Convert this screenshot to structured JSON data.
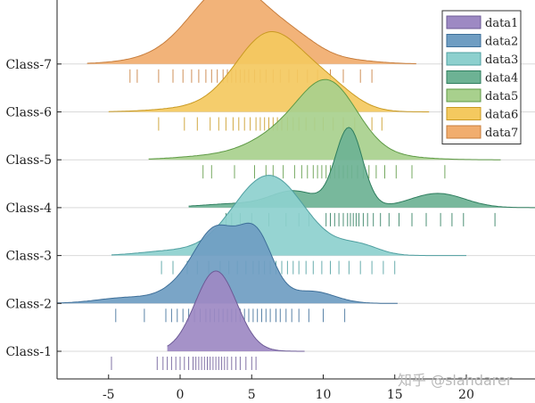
{
  "chart_data": {
    "type": "ridgeline",
    "title": "",
    "xlabel": "",
    "ylabel": "",
    "xlim": [
      -8.6,
      24.8
    ],
    "x_ticks": [
      -5,
      0,
      5,
      10,
      15,
      20
    ],
    "grid": "horizontal baselines only",
    "legend_position": "top-right",
    "categories": [
      "Class-1",
      "Class-2",
      "Class-3",
      "Class-4",
      "Class-5",
      "Class-6",
      "Class-7"
    ],
    "series": [
      {
        "name": "data1",
        "category": "Class-1",
        "color": "#9d89c3",
        "edge": "#6c5a96",
        "range": [
          -0.9,
          8.7
        ],
        "peaks": [
          [
            2.5,
            1.45,
            1.0
          ]
        ],
        "rug": [
          -4.8,
          -1.6,
          -1.2,
          -0.9,
          -0.6,
          -0.3,
          0.0,
          0.3,
          0.6,
          0.9,
          1.1,
          1.3,
          1.5,
          1.7,
          1.9,
          2.1,
          2.3,
          2.5,
          2.7,
          2.9,
          3.1,
          3.3,
          3.6,
          3.9,
          4.2,
          4.6,
          5.0,
          5.3
        ]
      },
      {
        "name": "data2",
        "category": "Class-2",
        "color": "#6f9dc2",
        "edge": "#3e6f99",
        "range": [
          -8.6,
          15.2
        ],
        "peaks": [
          [
            5.3,
            1.2,
            0.55
          ],
          [
            2.6,
            1.4,
            0.55
          ],
          [
            0.5,
            1.5,
            0.15
          ],
          [
            -3.5,
            2.2,
            0.05
          ],
          [
            9.2,
            1.6,
            0.1
          ]
        ],
        "rug": [
          -4.5,
          -2.5,
          -1.0,
          -0.6,
          -0.2,
          0.2,
          0.6,
          1.0,
          1.4,
          1.8,
          2.1,
          2.4,
          2.7,
          3.0,
          3.3,
          3.6,
          3.9,
          4.2,
          4.5,
          4.8,
          5.1,
          5.4,
          5.7,
          6.0,
          6.3,
          6.7,
          7.0,
          7.4,
          7.8,
          8.3,
          9.0,
          10.0,
          11.5
        ]
      },
      {
        "name": "data3",
        "category": "Class-3",
        "color": "#8dd0ce",
        "edge": "#4f9fa0",
        "range": [
          -4.8,
          20.0
        ],
        "peaks": [
          [
            6.2,
            2.5,
            1.0
          ],
          [
            12.5,
            1.4,
            0.12
          ],
          [
            -1.0,
            2.0,
            0.05
          ]
        ],
        "rug": [
          -1.3,
          -0.5,
          0.5,
          1.2,
          2.0,
          2.8,
          3.4,
          4.0,
          4.6,
          5.1,
          5.5,
          5.9,
          6.3,
          6.7,
          7.1,
          7.5,
          7.9,
          8.3,
          8.8,
          9.3,
          9.9,
          10.5,
          11.1,
          11.8,
          12.6,
          13.4,
          14.2,
          15.0
        ]
      },
      {
        "name": "data4",
        "category": "Class-4",
        "color": "#6db294",
        "edge": "#2e7d5e",
        "range": [
          0.6,
          24.8
        ],
        "peaks": [
          [
            11.8,
            0.95,
            1.0
          ],
          [
            8.0,
            1.6,
            0.2
          ],
          [
            18.0,
            1.9,
            0.18
          ],
          [
            4.0,
            2.5,
            0.05
          ]
        ],
        "rug": [
          3.2,
          3.6,
          4.2,
          5.0,
          6.2,
          7.4,
          8.3,
          9.0,
          10.2,
          10.5,
          10.8,
          11.1,
          11.4,
          11.7,
          11.9,
          12.1,
          12.3,
          12.5,
          12.8,
          13.1,
          13.5,
          14.0,
          14.6,
          15.3,
          16.2,
          17.2,
          18.2,
          19.0,
          19.8,
          22.0
        ]
      },
      {
        "name": "data5",
        "category": "Class-5",
        "color": "#a8d08d",
        "edge": "#5e9a45",
        "range": [
          -2.2,
          22.4
        ],
        "peaks": [
          [
            10.5,
            2.0,
            0.82
          ],
          [
            7.5,
            2.5,
            0.33
          ],
          [
            2.0,
            2.5,
            0.04
          ],
          [
            14.5,
            2.5,
            0.04
          ]
        ],
        "rug": [
          1.6,
          2.2,
          3.8,
          5.2,
          6.0,
          6.5,
          7.2,
          8.0,
          8.5,
          8.9,
          9.3,
          9.6,
          9.9,
          10.2,
          10.5,
          10.8,
          11.1,
          11.4,
          11.7,
          12.0,
          12.4,
          12.8,
          13.2,
          13.7,
          14.3,
          15.1,
          16.2,
          18.5
        ]
      },
      {
        "name": "data6",
        "category": "Class-6",
        "color": "#f4c95f",
        "edge": "#c99a22",
        "range": [
          -5.0,
          17.4
        ],
        "peaks": [
          [
            6.3,
            2.4,
            1.0
          ],
          [
            10.5,
            1.8,
            0.25
          ],
          [
            0.5,
            2.5,
            0.04
          ]
        ],
        "rug": [
          -1.5,
          0.3,
          1.2,
          2.1,
          2.7,
          3.2,
          3.7,
          4.1,
          4.5,
          4.9,
          5.3,
          5.6,
          5.9,
          6.2,
          6.5,
          6.8,
          7.1,
          7.5,
          7.9,
          8.3,
          8.8,
          9.4,
          10.0,
          10.7,
          11.4,
          12.2,
          13.4,
          14.1
        ]
      },
      {
        "name": "data7",
        "category": "Class-7",
        "color": "#f1ad6e",
        "edge": "#c77d3c",
        "range": [
          -6.5,
          16.5
        ],
        "peaks": [
          [
            3.5,
            2.7,
            1.0
          ],
          [
            8.2,
            1.8,
            0.2
          ],
          [
            -2.0,
            2.5,
            0.04
          ],
          [
            12.0,
            2.0,
            0.04
          ]
        ],
        "rug": [
          -3.5,
          -3.0,
          -1.5,
          -0.5,
          0.2,
          0.8,
          1.3,
          1.8,
          2.2,
          2.6,
          3.0,
          3.3,
          3.6,
          3.9,
          4.2,
          4.5,
          4.8,
          5.2,
          5.6,
          6.0,
          6.5,
          7.0,
          7.6,
          8.2,
          8.9,
          9.6,
          10.5,
          11.4,
          12.6,
          13.4
        ]
      }
    ]
  },
  "watermark": "知乎 @slandarer"
}
